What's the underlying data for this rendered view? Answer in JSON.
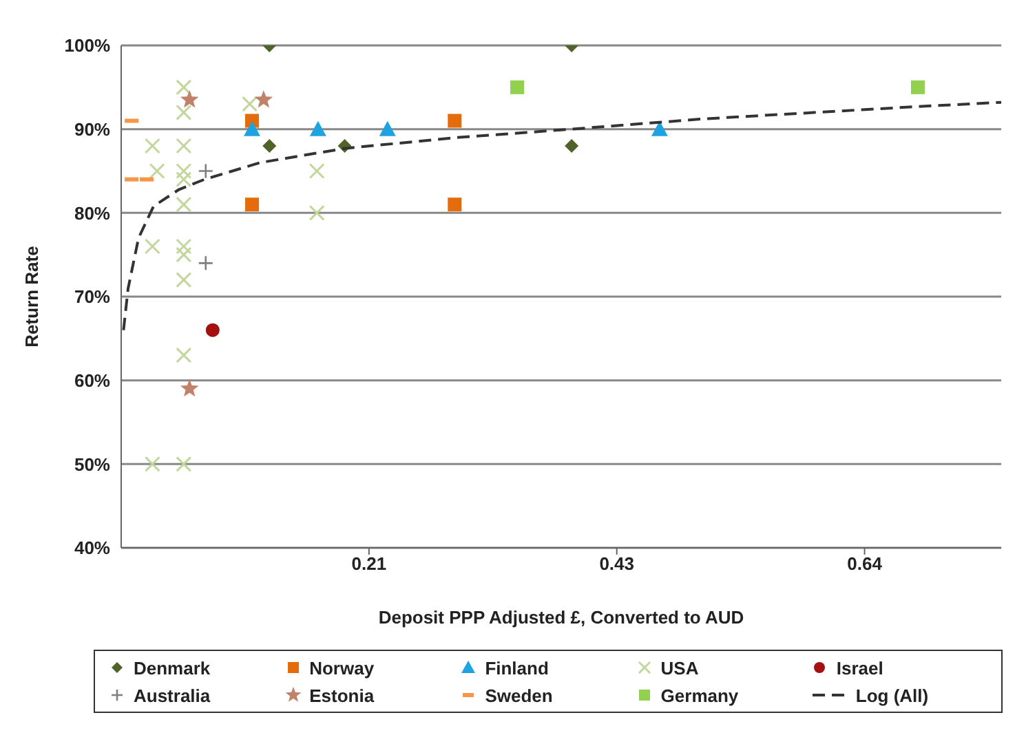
{
  "chart_data": {
    "type": "scatter",
    "xlabel": "Deposit PPP Adjusted  £, Converted to   AUD",
    "ylabel": "Return Rate",
    "xlim": [
      0,
      0.76
    ],
    "xticks": [
      {
        "value": 0.214,
        "label": "0.21"
      },
      {
        "value": 0.428,
        "label": "0.43"
      },
      {
        "value": 0.642,
        "label": "0.64"
      }
    ],
    "ylim": [
      40,
      100
    ],
    "yticks": [
      {
        "value": 40,
        "label": "40%"
      },
      {
        "value": 50,
        "label": "50%"
      },
      {
        "value": 60,
        "label": "60%"
      },
      {
        "value": 70,
        "label": "70%"
      },
      {
        "value": 80,
        "label": "80%"
      },
      {
        "value": 90,
        "label": "90%"
      },
      {
        "value": 100,
        "label": "100%"
      }
    ],
    "grid": "y",
    "legend": "bottom",
    "series": [
      {
        "name": "Denmark",
        "color": "#4f6228",
        "marker": "diamond",
        "x": [
          0.128,
          0.128,
          0.193,
          0.389,
          0.389
        ],
        "values": [
          100,
          88,
          88,
          100,
          88
        ]
      },
      {
        "name": "Norway",
        "color": "#e46c0a",
        "marker": "square",
        "x": [
          0.113,
          0.113,
          0.288,
          0.288
        ],
        "values": [
          91,
          81,
          91,
          81
        ]
      },
      {
        "name": "Finland",
        "color": "#1fa3e0",
        "marker": "triangle",
        "x": [
          0.113,
          0.17,
          0.23,
          0.465
        ],
        "values": [
          90,
          90,
          90,
          90
        ]
      },
      {
        "name": "USA",
        "color": "#c3d69b",
        "marker": "cross",
        "x": [
          0.054,
          0.054,
          0.111,
          0.027,
          0.054,
          0.031,
          0.054,
          0.054,
          0.054,
          0.027,
          0.054,
          0.054,
          0.054,
          0.169,
          0.169,
          0.054,
          0.027,
          0.054
        ],
        "values": [
          95,
          92,
          93,
          88,
          88,
          85,
          85,
          84,
          81,
          76,
          76,
          75,
          72,
          85,
          80,
          63,
          50,
          50
        ]
      },
      {
        "name": "Israel",
        "color": "#a50f0f",
        "marker": "circle",
        "x": [
          0.079
        ],
        "values": [
          66
        ]
      },
      {
        "name": "Australia",
        "color": "#7f7f7f",
        "marker": "plus",
        "x": [
          0.073,
          0.073
        ],
        "values": [
          85,
          74
        ]
      },
      {
        "name": "Estonia",
        "color": "#c0826a",
        "marker": "star",
        "x": [
          0.059,
          0.123,
          0.059
        ],
        "values": [
          93.5,
          93.5,
          59
        ]
      },
      {
        "name": "Sweden",
        "color": "#f79646",
        "x": [
          0.009,
          0.009,
          0.022
        ],
        "values": [
          91,
          84,
          84
        ]
      },
      {
        "name": "Germany",
        "color": "#92d050",
        "marker": "square",
        "x": [
          0.342,
          0.688
        ],
        "values": [
          95,
          95
        ]
      },
      {
        "name": "Log (All)",
        "type": "line",
        "line_style": "dashed",
        "color": "#333333",
        "x": [
          0.002,
          0.006,
          0.015,
          0.028,
          0.05,
          0.072,
          0.12,
          0.193,
          0.29,
          0.389,
          0.5,
          0.6,
          0.688,
          0.76
        ],
        "values": [
          66,
          71,
          77,
          80.8,
          82.8,
          84,
          86,
          87.7,
          89,
          90,
          91.2,
          92,
          92.7,
          93.2
        ]
      }
    ]
  }
}
